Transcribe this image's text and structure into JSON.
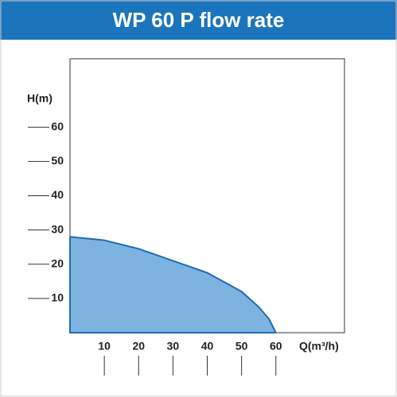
{
  "chart_data": {
    "type": "area",
    "title": "WP 60 P flow rate",
    "x_label": "Q(m³/h)",
    "y_label": "H(m)",
    "x": [
      0,
      10,
      20,
      30,
      40,
      50,
      55,
      58,
      60
    ],
    "values": [
      28,
      27,
      24.5,
      21,
      17.5,
      12,
      7.5,
      4,
      0
    ],
    "color": "#7fb3df",
    "line_color": "#1b6bb5",
    "xlim": [
      0,
      80
    ],
    "ylim": [
      0,
      80
    ],
    "xticks": [
      10,
      20,
      30,
      40,
      50,
      60
    ],
    "yticks": [
      10,
      20,
      30,
      40,
      50,
      60
    ],
    "grid": false
  }
}
